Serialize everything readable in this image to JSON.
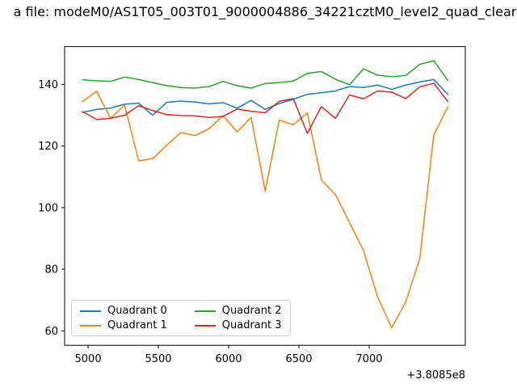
{
  "chart_data": {
    "type": "line",
    "title": "a file: modeM0/AS1T05_003T01_9000004886_34221cztM0_level2_quad_clear",
    "xlabel": "",
    "ylabel": "",
    "x_offset_label": "+3.8085e8",
    "xlim": [
      4833,
      7684
    ],
    "ylim": [
      55.3,
      152.3
    ],
    "x_ticks": [
      5000,
      5500,
      6000,
      6500,
      7000
    ],
    "y_ticks": [
      60,
      80,
      100,
      120,
      140
    ],
    "grid": false,
    "legend_position": "lower left",
    "x": [
      4960,
      5060,
      5160,
      5260,
      5360,
      5460,
      5560,
      5660,
      5760,
      5860,
      5960,
      6060,
      6160,
      6260,
      6360,
      6460,
      6560,
      6660,
      6760,
      6860,
      6960,
      7060,
      7160,
      7260,
      7360,
      7460,
      7560
    ],
    "series": [
      {
        "name": "Quadrant 0",
        "color": "#1f77b4",
        "values": [
          130.9,
          131.9,
          132.3,
          133.6,
          133.9,
          130.0,
          134.2,
          134.6,
          134.3,
          133.7,
          134.1,
          132.3,
          134.8,
          131.9,
          133.8,
          135.2,
          136.8,
          137.3,
          137.9,
          139.3,
          139.0,
          139.8,
          138.4,
          139.8,
          140.8,
          141.6,
          136.7
        ]
      },
      {
        "name": "Quadrant 1",
        "color": "#ff7f0e",
        "values": [
          134.4,
          137.8,
          129.0,
          133.3,
          115.2,
          115.9,
          120.3,
          124.4,
          123.4,
          125.6,
          129.9,
          124.6,
          129.3,
          105.4,
          128.4,
          126.9,
          130.8,
          109.0,
          104.2,
          95.2,
          86.0,
          71.0,
          61.0,
          69.4,
          83.5,
          123.6,
          132.8
        ]
      },
      {
        "name": "Quadrant 2",
        "color": "#2ca02c",
        "values": [
          141.5,
          141.2,
          141.0,
          142.4,
          141.6,
          140.6,
          139.6,
          139.0,
          138.8,
          139.3,
          141.0,
          139.6,
          138.8,
          140.3,
          140.6,
          141.1,
          143.6,
          144.2,
          141.7,
          139.9,
          145.1,
          143.0,
          142.5,
          142.9,
          146.5,
          147.7,
          141.3
        ]
      },
      {
        "name": "Quadrant 3",
        "color": "#d62728",
        "values": [
          131.2,
          128.6,
          129.0,
          130.0,
          133.1,
          131.5,
          130.2,
          129.9,
          129.8,
          129.3,
          129.6,
          132.0,
          131.3,
          130.8,
          134.5,
          135.4,
          124.1,
          132.8,
          129.0,
          136.6,
          135.3,
          137.9,
          137.5,
          135.4,
          139.2,
          140.4,
          134.4
        ]
      }
    ]
  }
}
